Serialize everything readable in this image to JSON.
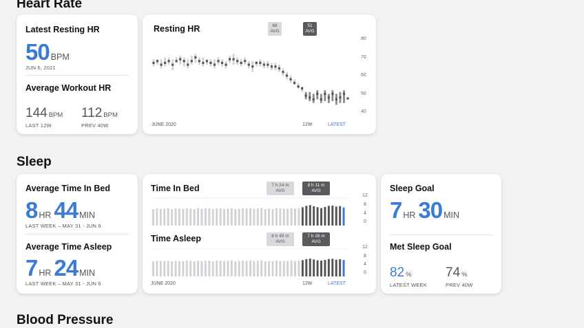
{
  "heart_rate": {
    "section_title": "Heart Rate",
    "latest_resting": {
      "title": "Latest Resting HR",
      "value": "50",
      "unit": "BPM",
      "date": "JUN 6, 2021"
    },
    "avg_workout": {
      "title": "Average Workout HR",
      "left_value": "144",
      "left_unit": "BPM",
      "left_caption": "LAST 12W",
      "right_value": "112",
      "right_unit": "BPM",
      "right_caption": "PREV 40W"
    },
    "resting_chart": {
      "title": "Resting HR",
      "badge_prev_value": "68",
      "badge_prev_label": "AVG",
      "badge_recent_value": "51",
      "badge_recent_label": "AVG",
      "y_ticks": [
        "80",
        "70",
        "60",
        "50",
        "40"
      ],
      "x_start": "JUNE 2020",
      "x_mid": "12W",
      "x_end": "LATEST"
    }
  },
  "sleep": {
    "section_title": "Sleep",
    "avg_in_bed": {
      "title": "Average Time In Bed",
      "hours": "8",
      "hr_unit": "HR",
      "minutes": "44",
      "min_unit": "MIN",
      "caption": "LAST WEEK – MAY 31 - JUN 6"
    },
    "avg_asleep": {
      "title": "Average Time Asleep",
      "hours": "7",
      "hr_unit": "HR",
      "minutes": "24",
      "min_unit": "MIN",
      "caption": "LAST WEEK – MAY 31 - JUN 6"
    },
    "in_bed_chart": {
      "title": "Time In Bed",
      "badge_prev_value": "7 h 24 m",
      "badge_prev_label": "AVG",
      "badge_recent_value": "8 h 11 m",
      "badge_recent_label": "AVG",
      "y_ticks": [
        "12",
        "8",
        "4",
        "0"
      ]
    },
    "asleep_chart": {
      "title": "Time Asleep",
      "badge_prev_value": "6 h 49 m",
      "badge_prev_label": "AVG",
      "badge_recent_value": "7 h 28 m",
      "badge_recent_label": "AVG",
      "y_ticks": [
        "12",
        "8",
        "4",
        "0"
      ],
      "x_start": "JUNE 2020",
      "x_mid": "12W",
      "x_end": "LATEST"
    },
    "goal": {
      "title": "Sleep Goal",
      "hours": "7",
      "hr_unit": "HR",
      "minutes": "30",
      "min_unit": "MIN"
    },
    "met_goal": {
      "title": "Met Sleep Goal",
      "left_value": "82",
      "left_unit": "%",
      "left_caption": "LATEST WEEK",
      "right_value": "74",
      "right_unit": "%",
      "right_caption": "PREV 40W"
    }
  },
  "blood_pressure": {
    "section_title": "Blood Pressure"
  },
  "colors": {
    "accent": "#3a7bd5",
    "bar_light": "#d2d2d6",
    "bar_dark": "#555558",
    "latest_bar": "#3a7bd5"
  },
  "chart_data": [
    {
      "type": "scatter",
      "name_ref": "Resting HR",
      "ylim": [
        40,
        80
      ],
      "ytick_values": [
        40,
        50,
        60,
        70,
        80
      ],
      "weeks_total": 52,
      "recent_weeks": 12,
      "points": [
        {
          "lo": 65,
          "hi": 69,
          "mid": 67
        },
        {
          "lo": 66,
          "hi": 69,
          "mid": 68
        },
        {
          "lo": 64,
          "hi": 69,
          "mid": 66
        },
        {
          "lo": 65,
          "hi": 70,
          "mid": 67
        },
        {
          "lo": 66,
          "hi": 70,
          "mid": 68
        },
        {
          "lo": 63,
          "hi": 69,
          "mid": 66
        },
        {
          "lo": 67,
          "hi": 70,
          "mid": 68
        },
        {
          "lo": 66,
          "hi": 71,
          "mid": 69
        },
        {
          "lo": 65,
          "hi": 70,
          "mid": 68
        },
        {
          "lo": 64,
          "hi": 69,
          "mid": 66
        },
        {
          "lo": 66,
          "hi": 71,
          "mid": 68
        },
        {
          "lo": 67,
          "hi": 72,
          "mid": 70
        },
        {
          "lo": 66,
          "hi": 70,
          "mid": 68
        },
        {
          "lo": 65,
          "hi": 70,
          "mid": 67
        },
        {
          "lo": 66,
          "hi": 69,
          "mid": 68
        },
        {
          "lo": 65,
          "hi": 69,
          "mid": 67
        },
        {
          "lo": 64,
          "hi": 69,
          "mid": 66
        },
        {
          "lo": 66,
          "hi": 70,
          "mid": 68
        },
        {
          "lo": 65,
          "hi": 69,
          "mid": 67
        },
        {
          "lo": 64,
          "hi": 68,
          "mid": 66
        },
        {
          "lo": 67,
          "hi": 71,
          "mid": 69
        },
        {
          "lo": 66,
          "hi": 72,
          "mid": 69
        },
        {
          "lo": 66,
          "hi": 70,
          "mid": 68
        },
        {
          "lo": 65,
          "hi": 69,
          "mid": 67
        },
        {
          "lo": 66,
          "hi": 70,
          "mid": 68
        },
        {
          "lo": 64,
          "hi": 68,
          "mid": 66
        },
        {
          "lo": 62,
          "hi": 68,
          "mid": 65
        },
        {
          "lo": 65,
          "hi": 68,
          "mid": 67
        },
        {
          "lo": 65,
          "hi": 69,
          "mid": 67
        },
        {
          "lo": 64,
          "hi": 68,
          "mid": 66
        },
        {
          "lo": 64,
          "hi": 68,
          "mid": 66
        },
        {
          "lo": 63,
          "hi": 67,
          "mid": 65
        },
        {
          "lo": 63,
          "hi": 67,
          "mid": 65
        },
        {
          "lo": 62,
          "hi": 66,
          "mid": 64
        },
        {
          "lo": 60,
          "hi": 64,
          "mid": 62
        },
        {
          "lo": 58,
          "hi": 62,
          "mid": 60
        },
        {
          "lo": 56,
          "hi": 60,
          "mid": 58
        },
        {
          "lo": 55,
          "hi": 58,
          "mid": 56
        },
        {
          "lo": 53,
          "hi": 56,
          "mid": 54
        },
        {
          "lo": 51,
          "hi": 54,
          "mid": 53
        },
        {
          "lo": 47,
          "hi": 51,
          "mid": 49
        },
        {
          "lo": 46,
          "hi": 51,
          "mid": 48
        },
        {
          "lo": 45,
          "hi": 50,
          "mid": 47
        },
        {
          "lo": 47,
          "hi": 52,
          "mid": 50
        },
        {
          "lo": 45,
          "hi": 50,
          "mid": 47
        },
        {
          "lo": 46,
          "hi": 52,
          "mid": 50
        },
        {
          "lo": 45,
          "hi": 50,
          "mid": 48
        },
        {
          "lo": 46,
          "hi": 52,
          "mid": 50
        },
        {
          "lo": 44,
          "hi": 50,
          "mid": 47
        },
        {
          "lo": 45,
          "hi": 51,
          "mid": 48
        },
        {
          "lo": 45,
          "hi": 52,
          "mid": 50
        },
        {
          "lo": 47,
          "hi": 48,
          "mid": 47.5
        }
      ]
    },
    {
      "type": "bar",
      "name_ref": "Time In Bed",
      "ylim": [
        0,
        12
      ],
      "recent_weeks": 12,
      "values": [
        7.2,
        7.5,
        7.3,
        7.4,
        7.6,
        7.2,
        7.5,
        7.4,
        7.3,
        7.5,
        7.4,
        7.2,
        7.6,
        7.3,
        7.4,
        7.5,
        7.2,
        7.4,
        7.5,
        7.3,
        7.4,
        7.6,
        7.2,
        7.3,
        7.5,
        7.4,
        7.6,
        7.3,
        7.5,
        7.8,
        7.2,
        7.4,
        7.3,
        7.6,
        7.5,
        7.4,
        7.3,
        7.6,
        7.4,
        7.5,
        8.0,
        8.6,
        8.9,
        8.4,
        8.0,
        7.6,
        8.1,
        8.6,
        8.7,
        8.3,
        8.5,
        7.9
      ]
    },
    {
      "type": "bar",
      "name_ref": "Time Asleep",
      "ylim": [
        0,
        12
      ],
      "recent_weeks": 12,
      "values": [
        6.6,
        6.8,
        6.7,
        6.8,
        6.9,
        6.6,
        6.8,
        6.7,
        6.6,
        6.9,
        6.8,
        6.6,
        6.9,
        6.7,
        6.8,
        6.9,
        6.6,
        6.8,
        6.9,
        6.7,
        6.8,
        7.0,
        6.6,
        6.7,
        6.9,
        6.8,
        7.0,
        6.7,
        6.9,
        7.1,
        6.6,
        6.8,
        6.7,
        6.9,
        6.8,
        6.8,
        6.7,
        6.9,
        6.8,
        6.9,
        7.1,
        7.6,
        7.8,
        7.4,
        7.0,
        6.9,
        7.2,
        7.6,
        7.7,
        7.3,
        7.5,
        7.2
      ]
    }
  ]
}
